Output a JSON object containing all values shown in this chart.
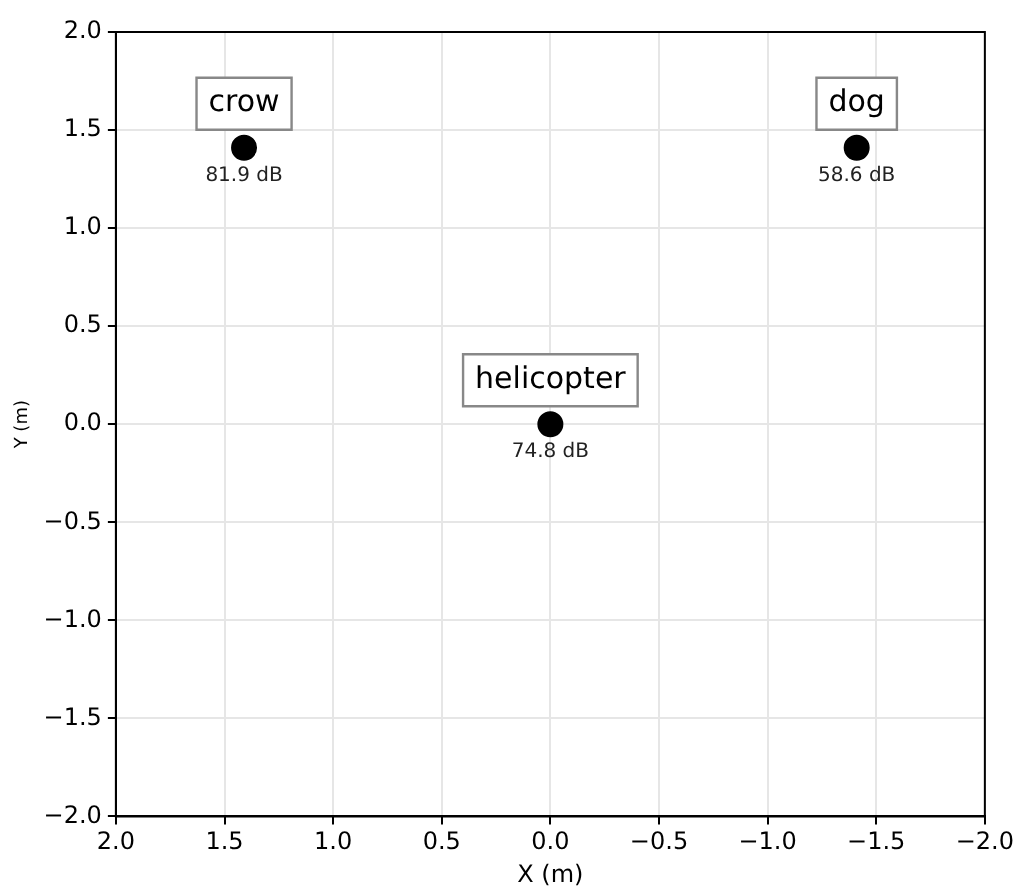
{
  "chart_data": {
    "type": "scatter",
    "xlabel": "X (m)",
    "ylabel": "Y (m)",
    "series": [
      {
        "name": "crow",
        "color": "#000000",
        "x": [
          1.41
        ],
        "values": [
          1.41
        ]
      },
      {
        "name": "dog",
        "color": "#000000",
        "x": [
          -1.41
        ],
        "values": [
          1.41
        ]
      },
      {
        "name": "helicopter",
        "color": "#000000",
        "x": [
          0
        ],
        "values": [
          0
        ]
      }
    ],
    "annotations": [
      {
        "text": "81.9 dB",
        "x": 1.41,
        "y": 1.41
      },
      {
        "text": "58.6 dB",
        "x": -1.41,
        "y": 1.41
      },
      {
        "text": "74.8 dB",
        "x": 0,
        "y": 0
      }
    ],
    "xlim": [
      2,
      -2
    ],
    "ylim": [
      -2,
      2
    ],
    "xticks": [
      {
        "value": 2,
        "label": "2.0"
      },
      {
        "value": 1.5,
        "label": "1.5"
      },
      {
        "value": 1,
        "label": "1.0"
      },
      {
        "value": 0.5,
        "label": "0.5"
      },
      {
        "value": 0,
        "label": "0.0"
      },
      {
        "value": -0.5,
        "label": "−0.5"
      },
      {
        "value": -1,
        "label": "−1.0"
      },
      {
        "value": -1.5,
        "label": "−1.5"
      },
      {
        "value": -2,
        "label": "−2.0"
      }
    ],
    "yticks": [
      {
        "value": -2,
        "label": "−2.0"
      },
      {
        "value": -1.5,
        "label": "−1.5"
      },
      {
        "value": -1,
        "label": "−1.0"
      },
      {
        "value": -0.5,
        "label": "−0.5"
      },
      {
        "value": 0,
        "label": "0.0"
      },
      {
        "value": 0.5,
        "label": "0.5"
      },
      {
        "value": 1,
        "label": "1.0"
      },
      {
        "value": 1.5,
        "label": "1.5"
      },
      {
        "value": 2,
        "label": "2.0"
      }
    ],
    "grid": true,
    "legend": false,
    "marker": "circle"
  }
}
